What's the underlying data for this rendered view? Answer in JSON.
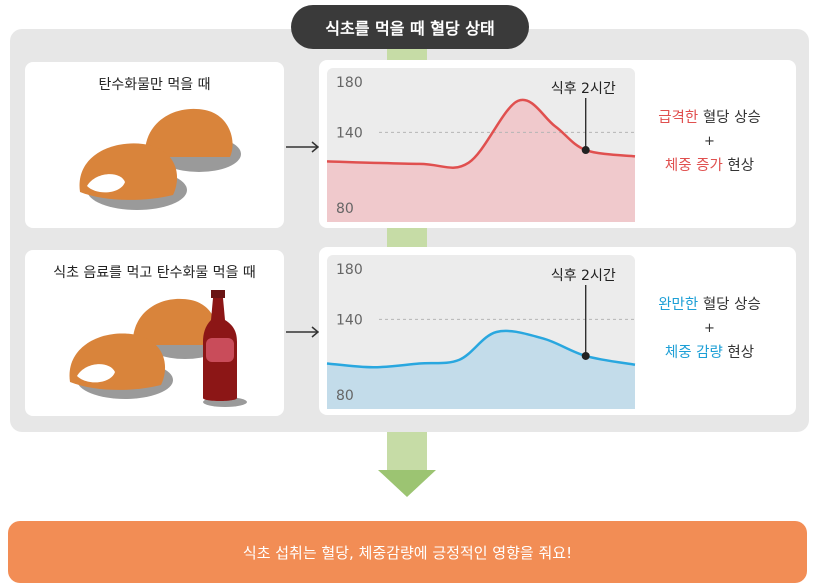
{
  "title": "식초를 먹을 때 혈당 상태",
  "footer": "식초 섭취는 혈당, 체중감량에 긍정적인 영향을 줘요!",
  "colors": {
    "red_line": "#e0504f",
    "red_fill": "#f0c9cc",
    "blue_line": "#29a7df",
    "blue_fill": "#c3dcea",
    "footer": "#f28d55",
    "arrow": "#9cc472"
  },
  "rows": [
    {
      "label": "탄수화물만 먹을 때",
      "result_pre": "급격한",
      "result_post": " 혈당 상승",
      "plus": "+",
      "result2_pre": "체중 증가",
      "result2_post": " 현상"
    },
    {
      "label": "식초 음료를 먹고 탄수화물 먹을 때",
      "result_pre": "완만한",
      "result_post": " 혈당 상승",
      "plus": "+",
      "result2_pre": "체중 감량",
      "result2_post": " 현상"
    }
  ],
  "chart_data": [
    {
      "type": "area",
      "yticks": [
        "180",
        "140",
        "80"
      ],
      "ylim": [
        80,
        180
      ],
      "annotation": "식후 2시간",
      "series": [
        {
          "x": [
            0,
            0.3,
            0.46,
            0.62,
            0.74,
            0.84,
            1
          ],
          "values": [
            117,
            115,
            116,
            165,
            145,
            126,
            121
          ]
        }
      ]
    },
    {
      "type": "area",
      "yticks": [
        "180",
        "140",
        "80"
      ],
      "ylim": [
        80,
        180
      ],
      "annotation": "식후 2시간",
      "series": [
        {
          "x": [
            0,
            0.15,
            0.3,
            0.43,
            0.55,
            0.7,
            0.84,
            1
          ],
          "values": [
            105,
            102,
            105,
            108,
            130,
            125,
            111,
            104
          ]
        }
      ]
    }
  ]
}
